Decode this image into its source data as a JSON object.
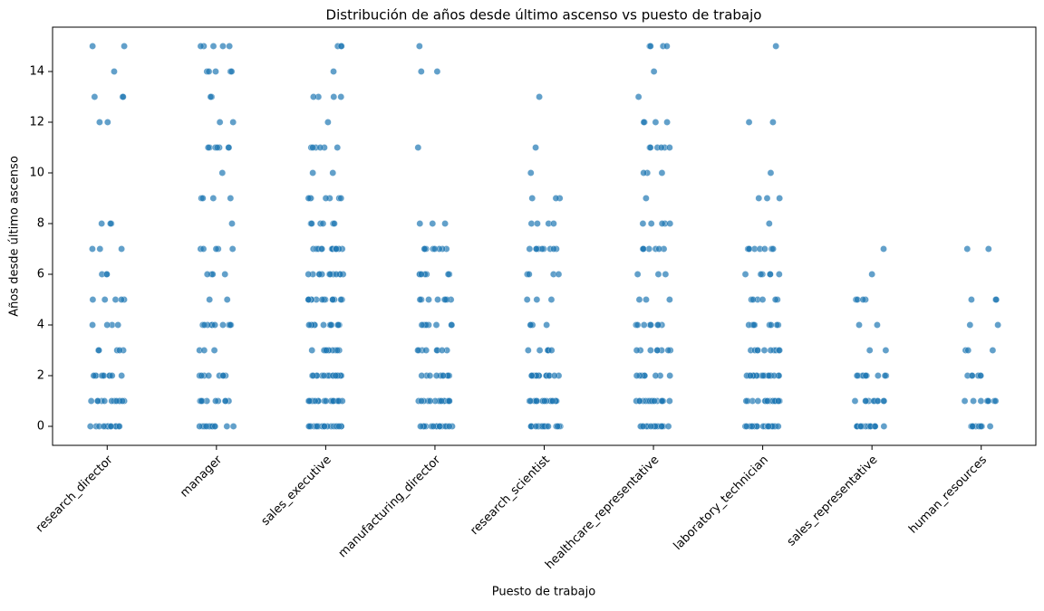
{
  "chart_data": {
    "type": "strip",
    "title": "Distribución de años desde último ascenso vs puesto de trabajo",
    "x_label": "Puesto de trabajo",
    "y_label": "Años desde último ascenso",
    "color": "#1f77b4",
    "categories": [
      "research_director",
      "manager",
      "sales_executive",
      "manufacturing_director",
      "research_scientist",
      "healthcare_representative",
      "laboratory_technician",
      "sales_representative",
      "human_resources"
    ],
    "values": [
      [
        0,
        0,
        0,
        0,
        0,
        0,
        0,
        0,
        0,
        0,
        0,
        0,
        0,
        0,
        0,
        1,
        1,
        1,
        1,
        1,
        1,
        1,
        1,
        1,
        1,
        1,
        1,
        2,
        2,
        2,
        2,
        2,
        2,
        2,
        2,
        2,
        2,
        3,
        3,
        3,
        3,
        3,
        4,
        4,
        4,
        4,
        5,
        5,
        5,
        5,
        5,
        6,
        6,
        6,
        7,
        7,
        7,
        8,
        8,
        8,
        12,
        12,
        13,
        13,
        13,
        14,
        15,
        15
      ],
      [
        0,
        0,
        0,
        0,
        0,
        0,
        0,
        0,
        0,
        0,
        0,
        0,
        1,
        1,
        1,
        1,
        1,
        1,
        1,
        1,
        1,
        1,
        2,
        2,
        2,
        2,
        2,
        2,
        2,
        2,
        3,
        3,
        3,
        4,
        4,
        4,
        4,
        4,
        4,
        4,
        4,
        4,
        4,
        5,
        5,
        6,
        6,
        6,
        6,
        7,
        7,
        7,
        7,
        7,
        8,
        9,
        9,
        9,
        9,
        10,
        11,
        11,
        11,
        11,
        11,
        11,
        11,
        12,
        12,
        13,
        13,
        14,
        14,
        14,
        14,
        14,
        15,
        15,
        15,
        15,
        15
      ],
      [
        0,
        0,
        0,
        0,
        0,
        0,
        0,
        0,
        0,
        0,
        0,
        0,
        0,
        0,
        0,
        0,
        0,
        0,
        0,
        0,
        1,
        1,
        1,
        1,
        1,
        1,
        1,
        1,
        1,
        1,
        1,
        1,
        1,
        1,
        1,
        1,
        1,
        1,
        1,
        1,
        2,
        2,
        2,
        2,
        2,
        2,
        2,
        2,
        2,
        2,
        2,
        2,
        2,
        2,
        2,
        2,
        2,
        2,
        3,
        3,
        3,
        3,
        3,
        3,
        3,
        3,
        3,
        3,
        4,
        4,
        4,
        4,
        4,
        4,
        4,
        4,
        4,
        4,
        4,
        4,
        5,
        5,
        5,
        5,
        5,
        5,
        5,
        5,
        5,
        5,
        5,
        5,
        5,
        5,
        6,
        6,
        6,
        6,
        6,
        6,
        6,
        6,
        6,
        6,
        6,
        6,
        7,
        7,
        7,
        7,
        7,
        7,
        7,
        7,
        7,
        7,
        7,
        7,
        7,
        7,
        8,
        8,
        8,
        8,
        8,
        8,
        9,
        9,
        9,
        9,
        9,
        9,
        9,
        10,
        10,
        11,
        11,
        11,
        11,
        11,
        11,
        12,
        13,
        13,
        13,
        13,
        14,
        15,
        15,
        15
      ],
      [
        0,
        0,
        0,
        0,
        0,
        0,
        0,
        0,
        0,
        0,
        0,
        0,
        0,
        0,
        0,
        0,
        0,
        0,
        1,
        1,
        1,
        1,
        1,
        1,
        1,
        1,
        1,
        1,
        1,
        1,
        1,
        1,
        1,
        2,
        2,
        2,
        2,
        2,
        2,
        2,
        2,
        2,
        2,
        3,
        3,
        3,
        3,
        3,
        3,
        3,
        3,
        4,
        4,
        4,
        4,
        4,
        4,
        4,
        4,
        5,
        5,
        5,
        5,
        5,
        5,
        5,
        5,
        6,
        6,
        6,
        6,
        6,
        6,
        6,
        7,
        7,
        7,
        7,
        7,
        7,
        7,
        7,
        8,
        8,
        8,
        11,
        14,
        14,
        15
      ],
      [
        0,
        0,
        0,
        0,
        0,
        0,
        0,
        0,
        0,
        0,
        0,
        0,
        0,
        0,
        0,
        0,
        0,
        0,
        0,
        0,
        1,
        1,
        1,
        1,
        1,
        1,
        1,
        1,
        1,
        1,
        1,
        1,
        1,
        1,
        1,
        1,
        1,
        1,
        2,
        2,
        2,
        2,
        2,
        2,
        2,
        2,
        2,
        2,
        2,
        2,
        2,
        2,
        2,
        3,
        3,
        3,
        3,
        3,
        3,
        4,
        4,
        4,
        4,
        5,
        5,
        5,
        6,
        6,
        6,
        6,
        7,
        7,
        7,
        7,
        7,
        7,
        7,
        7,
        7,
        8,
        8,
        8,
        8,
        9,
        9,
        9,
        10,
        11,
        13
      ],
      [
        0,
        0,
        0,
        0,
        0,
        0,
        0,
        0,
        0,
        0,
        0,
        0,
        0,
        0,
        0,
        0,
        1,
        1,
        1,
        1,
        1,
        1,
        1,
        1,
        1,
        1,
        1,
        1,
        1,
        1,
        1,
        1,
        2,
        2,
        2,
        2,
        2,
        2,
        2,
        2,
        3,
        3,
        3,
        3,
        3,
        3,
        3,
        3,
        4,
        4,
        4,
        4,
        4,
        4,
        4,
        4,
        5,
        5,
        5,
        6,
        6,
        6,
        7,
        7,
        7,
        7,
        7,
        7,
        7,
        8,
        8,
        8,
        8,
        8,
        9,
        10,
        10,
        10,
        11,
        11,
        11,
        11,
        11,
        11,
        12,
        12,
        12,
        12,
        13,
        14,
        15,
        15,
        15,
        15
      ],
      [
        0,
        0,
        0,
        0,
        0,
        0,
        0,
        0,
        0,
        0,
        0,
        0,
        0,
        0,
        0,
        0,
        0,
        0,
        0,
        0,
        1,
        1,
        1,
        1,
        1,
        1,
        1,
        1,
        1,
        1,
        1,
        1,
        1,
        1,
        1,
        1,
        1,
        1,
        2,
        2,
        2,
        2,
        2,
        2,
        2,
        2,
        2,
        2,
        2,
        2,
        2,
        2,
        2,
        2,
        2,
        2,
        3,
        3,
        3,
        3,
        3,
        3,
        3,
        3,
        3,
        3,
        4,
        4,
        4,
        4,
        4,
        4,
        4,
        4,
        5,
        5,
        5,
        5,
        5,
        5,
        6,
        6,
        6,
        6,
        6,
        6,
        7,
        7,
        7,
        7,
        7,
        7,
        7,
        7,
        8,
        9,
        9,
        9,
        10,
        12,
        12,
        15
      ],
      [
        0,
        0,
        0,
        0,
        0,
        0,
        0,
        0,
        0,
        0,
        0,
        0,
        0,
        0,
        1,
        1,
        1,
        1,
        1,
        1,
        1,
        1,
        1,
        1,
        2,
        2,
        2,
        2,
        2,
        2,
        2,
        2,
        2,
        2,
        3,
        3,
        4,
        4,
        5,
        5,
        5,
        5,
        6,
        7
      ],
      [
        0,
        0,
        0,
        0,
        0,
        0,
        0,
        0,
        0,
        0,
        1,
        1,
        1,
        1,
        1,
        1,
        1,
        1,
        2,
        2,
        2,
        2,
        2,
        2,
        3,
        3,
        3,
        4,
        4,
        5,
        5,
        5,
        7,
        7
      ]
    ],
    "ylim": [
      -0.75,
      15.75
    ],
    "yticks": [
      0,
      2,
      4,
      6,
      8,
      10,
      12,
      14
    ]
  }
}
